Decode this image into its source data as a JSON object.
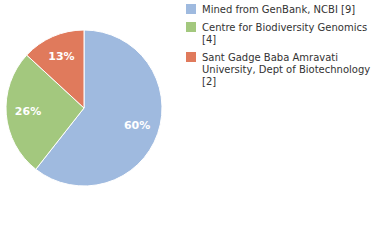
{
  "chart_data": {
    "type": "pie",
    "categories": [
      "Mined from GenBank, NCBI [9]",
      "Centre for Biodiversity Genomics [4]",
      "Sant Gadge Baba Amravati University, Dept of Biotechnology [2]"
    ],
    "values": [
      60,
      26,
      13
    ],
    "value_labels": [
      "60%",
      "26%",
      "13%"
    ],
    "colors": [
      "#9fbadf",
      "#a3c87e",
      "#e07a5c"
    ],
    "data_labels": true,
    "legend": "top-right"
  }
}
